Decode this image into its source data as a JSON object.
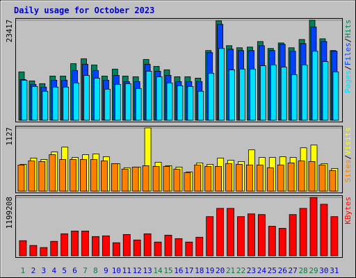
{
  "title": "Daily usage for October 2023",
  "chart_data": [
    {
      "type": "bar",
      "categories": [
        "1",
        "2",
        "3",
        "4",
        "5",
        "6",
        "7",
        "8",
        "9",
        "10",
        "11",
        "12",
        "13",
        "14",
        "15",
        "16",
        "17",
        "18",
        "19",
        "20",
        "21",
        "22",
        "23",
        "24",
        "25",
        "26",
        "27",
        "28",
        "29",
        "30",
        "31"
      ],
      "category_colors": [
        "#008040",
        "#0000cc",
        "#0000cc",
        "#0000cc",
        "#0000cc",
        "#0000cc",
        "#008040",
        "#008040",
        "#0000cc",
        "#0000cc",
        "#0000cc",
        "#0000cc",
        "#0000cc",
        "#008040",
        "#008040",
        "#0000cc",
        "#0000cc",
        "#0000cc",
        "#0000cc",
        "#0000cc",
        "#008040",
        "#008040",
        "#0000cc",
        "#0000cc",
        "#0000cc",
        "#0000cc",
        "#0000cc",
        "#008040",
        "#008040",
        "#0000cc",
        "#0000cc"
      ],
      "legend_separator": "/",
      "ylim": [
        0,
        23417
      ],
      "yticks": [
        23417
      ],
      "series": [
        {
          "name": "Hits",
          "color": "#00805c",
          "values": [
            11305,
            9205,
            8559,
            10336,
            10336,
            13243,
            14373,
            12920,
            10336,
            11951,
            10336,
            10174,
            14212,
            12597,
            11789,
            10174,
            10174,
            9851,
            16311,
            23256,
            17442,
            16957,
            17119,
            18411,
            16795,
            18088,
            16957,
            18895,
            23417,
            19056,
            16311
          ]
        },
        {
          "name": "Files",
          "color": "#0040ff",
          "values": [
            9528,
            8398,
            7752,
            9367,
            9367,
            11628,
            13081,
            11628,
            9367,
            10497,
            9044,
            9044,
            13081,
            11466,
            10497,
            9044,
            9044,
            9044,
            15826,
            22448,
            16634,
            16311,
            16311,
            17442,
            16311,
            17764,
            16150,
            17926,
            21802,
            18411,
            16150
          ]
        },
        {
          "name": "Pages",
          "color": "#00e0ff",
          "values": [
            9367,
            7913,
            6783,
            7752,
            7752,
            8721,
            10497,
            9851,
            7267,
            8398,
            8559,
            7429,
            11466,
            10174,
            8721,
            8075,
            7913,
            6783,
            10981,
            16795,
            11789,
            11951,
            11951,
            12758,
            12920,
            12435,
            10659,
            12920,
            16150,
            13727,
            11305
          ]
        }
      ]
    },
    {
      "type": "bar",
      "legend_separator": "/",
      "ylim": [
        0,
        1127
      ],
      "yticks": [
        1127
      ],
      "series": [
        {
          "name": "Visits",
          "color": "#ffff00",
          "values": [
            478,
            588,
            564,
            698,
            784,
            600,
            649,
            662,
            613,
            490,
            417,
            429,
            1127,
            515,
            453,
            429,
            343,
            503,
            478,
            588,
            551,
            527,
            735,
            600,
            600,
            613,
            600,
            772,
            821,
            490,
            404
          ]
        },
        {
          "name": "Sites",
          "color": "#ff8000",
          "values": [
            466,
            539,
            527,
            649,
            564,
            564,
            564,
            564,
            539,
            490,
            392,
            429,
            453,
            441,
            441,
            392,
            331,
            466,
            441,
            441,
            490,
            478,
            466,
            466,
            417,
            466,
            503,
            539,
            527,
            466,
            368
          ]
        }
      ]
    },
    {
      "type": "bar",
      "ylim": [
        0,
        1199208
      ],
      "yticks": [
        1199208
      ],
      "series": [
        {
          "name": "KBytes",
          "color": "#ff0000",
          "values": [
            310384,
            211625,
            169300,
            296275,
            451466,
            507912,
            507912,
            395027,
            409136,
            268058,
            437357,
            324492,
            451466,
            282166,
            423250,
            352708,
            282166,
            380925,
            804175,
            973475,
            973475,
            804175,
            860609,
            846500,
            606658,
            564333,
            846500,
            973475,
            1199208,
            1058125,
            804175
          ]
        }
      ]
    }
  ]
}
